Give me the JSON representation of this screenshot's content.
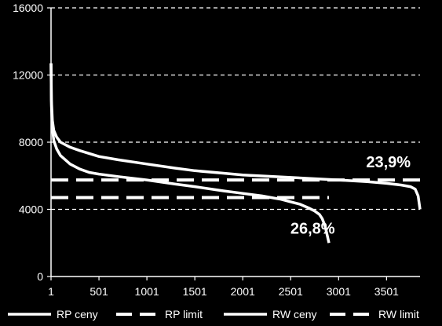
{
  "chart_data": {
    "type": "line",
    "title": "",
    "xlabel": "",
    "ylabel": "",
    "xlim": [
      1,
      3850
    ],
    "ylim": [
      0,
      16000
    ],
    "grid": "horizontal-dashed",
    "legend_position": "bottom",
    "x_ticks": [
      "1",
      "501",
      "1001",
      "1501",
      "2001",
      "2501",
      "3001",
      "3501"
    ],
    "x_tick_values": [
      1,
      501,
      1001,
      1501,
      2001,
      2501,
      3001,
      3501
    ],
    "y_ticks": [
      "0",
      "4000",
      "8000",
      "12000",
      "16000"
    ],
    "y_tick_values": [
      0,
      4000,
      8000,
      12000,
      16000
    ],
    "series": [
      {
        "name": "RP ceny",
        "style": "solid",
        "x": [
          1,
          5,
          15,
          30,
          60,
          100,
          200,
          300,
          400,
          500,
          700,
          1001,
          1300,
          1501,
          1800,
          2001,
          2200,
          2400,
          2500,
          2600,
          2700,
          2750,
          2800,
          2830,
          2860,
          2880,
          2900
        ],
        "y": [
          12700,
          10200,
          8800,
          8100,
          7600,
          7200,
          6700,
          6400,
          6200,
          6100,
          5950,
          5750,
          5500,
          5350,
          5100,
          4950,
          4800,
          4600,
          4450,
          4300,
          4050,
          3900,
          3700,
          3450,
          3000,
          2500,
          2000
        ]
      },
      {
        "name": "RP limit",
        "style": "dashed",
        "x": [
          1,
          2900
        ],
        "y": [
          4700,
          4700
        ]
      },
      {
        "name": "RW ceny",
        "style": "solid",
        "x": [
          1,
          5,
          15,
          30,
          60,
          100,
          200,
          300,
          500,
          700,
          1001,
          1300,
          1501,
          1800,
          2001,
          2500,
          3001,
          3300,
          3501,
          3650,
          3750,
          3800,
          3830,
          3850
        ],
        "y": [
          12700,
          10500,
          9300,
          8700,
          8300,
          8000,
          7700,
          7500,
          7150,
          6950,
          6700,
          6450,
          6300,
          6150,
          6050,
          5900,
          5750,
          5650,
          5550,
          5450,
          5350,
          5200,
          4800,
          4000
        ]
      },
      {
        "name": "RW limit",
        "style": "dashed",
        "x": [
          1,
          3850
        ],
        "y": [
          5750,
          5750
        ]
      }
    ],
    "annotations": [
      {
        "text": "23,9%",
        "x": 3520,
        "y": 6500
      },
      {
        "text": "26,8%",
        "x": 2730,
        "y": 2550
      }
    ]
  }
}
